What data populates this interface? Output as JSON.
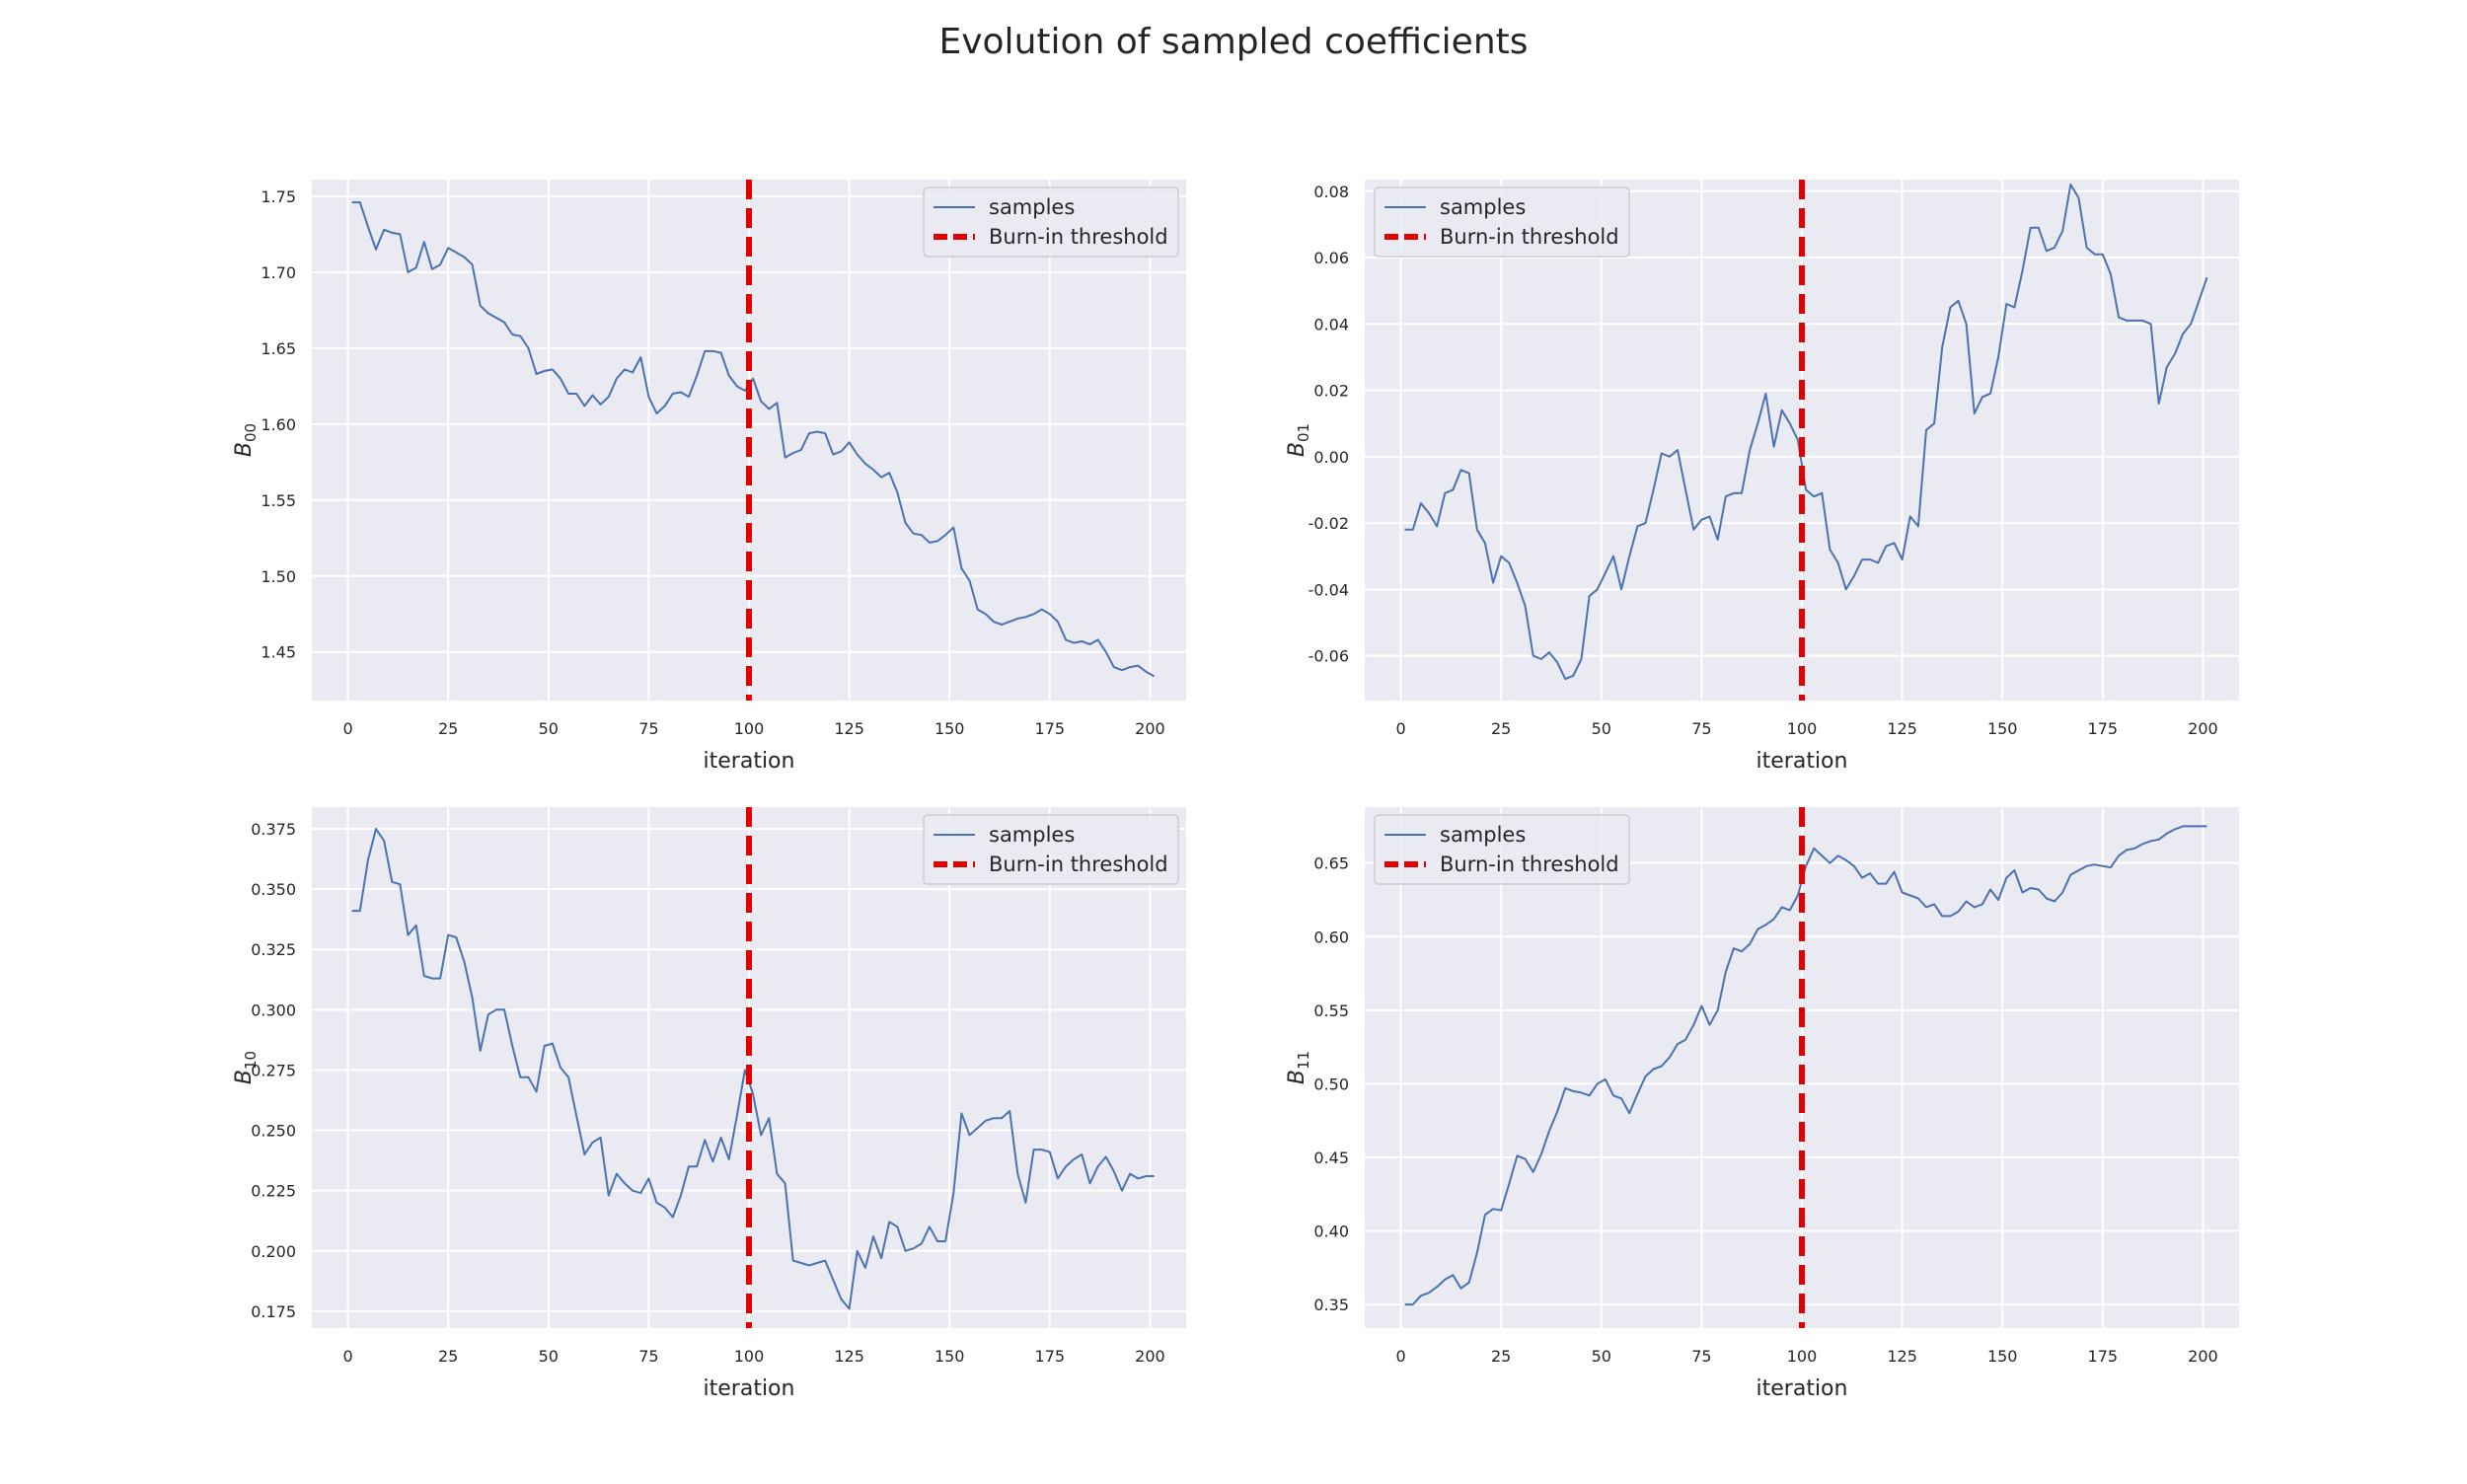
{
  "figure": {
    "suptitle": "Evolution of sampled coefficients",
    "background": "#ffffff",
    "axes_facecolor": "#eaeaf2",
    "grid_color": "#ffffff",
    "series_color": "#4c72b0",
    "threshold_color": "#e50000"
  },
  "chart_data": [
    {
      "type": "line",
      "ylabel_base": "B",
      "ylabel_sub": "00",
      "xlabel": "iteration",
      "xlim": [
        -9,
        209
      ],
      "ylim": [
        1.418,
        1.761
      ],
      "xticks": [
        0,
        25,
        50,
        75,
        100,
        125,
        150,
        175,
        200
      ],
      "yticks": [
        1.45,
        1.5,
        1.55,
        1.6,
        1.65,
        1.7,
        1.75
      ],
      "ytick_decimals": 2,
      "legend_loc": "upper right",
      "legend": [
        "samples",
        "Burn-in threshold"
      ],
      "threshold": 100,
      "grid": true,
      "series": [
        {
          "name": "samples",
          "x": [
            1,
            3,
            5,
            7,
            9,
            11,
            13,
            15,
            17,
            19,
            21,
            23,
            25,
            27,
            29,
            31,
            33,
            35,
            37,
            39,
            41,
            43,
            45,
            47,
            49,
            51,
            53,
            55,
            57,
            59,
            61,
            63,
            65,
            67,
            69,
            71,
            73,
            75,
            77,
            79,
            81,
            83,
            85,
            87,
            89,
            91,
            93,
            95,
            97,
            99,
            101,
            103,
            105,
            107,
            109,
            111,
            113,
            115,
            117,
            119,
            121,
            123,
            125,
            127,
            129,
            131,
            133,
            135,
            137,
            139,
            141,
            143,
            145,
            147,
            149,
            151,
            153,
            155,
            157,
            159,
            161,
            163,
            165,
            167,
            169,
            171,
            173,
            175,
            177,
            179,
            181,
            183,
            185,
            187,
            189,
            191,
            193,
            195,
            197,
            199,
            201
          ],
          "y": [
            1.746,
            1.746,
            1.73,
            1.715,
            1.728,
            1.726,
            1.725,
            1.7,
            1.703,
            1.72,
            1.702,
            1.705,
            1.716,
            1.713,
            1.71,
            1.705,
            1.678,
            1.673,
            1.67,
            1.667,
            1.659,
            1.658,
            1.65,
            1.633,
            1.635,
            1.636,
            1.63,
            1.62,
            1.62,
            1.612,
            1.619,
            1.613,
            1.618,
            1.63,
            1.636,
            1.634,
            1.644,
            1.618,
            1.607,
            1.612,
            1.62,
            1.621,
            1.618,
            1.632,
            1.648,
            1.648,
            1.647,
            1.632,
            1.625,
            1.622,
            1.63,
            1.615,
            1.61,
            1.614,
            1.578,
            1.581,
            1.583,
            1.594,
            1.595,
            1.594,
            1.58,
            1.582,
            1.588,
            1.58,
            1.574,
            1.57,
            1.565,
            1.568,
            1.555,
            1.535,
            1.528,
            1.527,
            1.522,
            1.523,
            1.527,
            1.532,
            1.505,
            1.497,
            1.478,
            1.475,
            1.47,
            1.468,
            1.47,
            1.472,
            1.473,
            1.475,
            1.478,
            1.475,
            1.47,
            1.458,
            1.456,
            1.457,
            1.455,
            1.458,
            1.45,
            1.44,
            1.438,
            1.44,
            1.441,
            1.437,
            1.434
          ]
        }
      ]
    },
    {
      "type": "line",
      "ylabel_base": "B",
      "ylabel_sub": "01",
      "xlabel": "iteration",
      "xlim": [
        -9,
        209
      ],
      "ylim": [
        -0.0735,
        0.0835
      ],
      "xticks": [
        0,
        25,
        50,
        75,
        100,
        125,
        150,
        175,
        200
      ],
      "yticks": [
        -0.06,
        -0.04,
        -0.02,
        0.0,
        0.02,
        0.04,
        0.06,
        0.08
      ],
      "ytick_decimals": 2,
      "legend_loc": "upper left",
      "legend": [
        "samples",
        "Burn-in threshold"
      ],
      "threshold": 100,
      "grid": true,
      "series": [
        {
          "name": "samples",
          "x": [
            1,
            3,
            5,
            7,
            9,
            11,
            13,
            15,
            17,
            19,
            21,
            23,
            25,
            27,
            29,
            31,
            33,
            35,
            37,
            39,
            41,
            43,
            45,
            47,
            49,
            51,
            53,
            55,
            57,
            59,
            61,
            63,
            65,
            67,
            69,
            71,
            73,
            75,
            77,
            79,
            81,
            83,
            85,
            87,
            89,
            91,
            93,
            95,
            97,
            99,
            101,
            103,
            105,
            107,
            109,
            111,
            113,
            115,
            117,
            119,
            121,
            123,
            125,
            127,
            129,
            131,
            133,
            135,
            137,
            139,
            141,
            143,
            145,
            147,
            149,
            151,
            153,
            155,
            157,
            159,
            161,
            163,
            165,
            167,
            169,
            171,
            173,
            175,
            177,
            179,
            181,
            183,
            185,
            187,
            189,
            191,
            193,
            195,
            197,
            199,
            201
          ],
          "y": [
            -0.022,
            -0.022,
            -0.014,
            -0.017,
            -0.021,
            -0.011,
            -0.01,
            -0.004,
            -0.005,
            -0.022,
            -0.026,
            -0.038,
            -0.03,
            -0.032,
            -0.038,
            -0.045,
            -0.06,
            -0.061,
            -0.059,
            -0.062,
            -0.067,
            -0.066,
            -0.061,
            -0.042,
            -0.04,
            -0.035,
            -0.03,
            -0.04,
            -0.03,
            -0.021,
            -0.02,
            -0.01,
            0.001,
            0.0,
            0.002,
            -0.01,
            -0.022,
            -0.019,
            -0.018,
            -0.025,
            -0.012,
            -0.011,
            -0.011,
            0.002,
            0.01,
            0.019,
            0.003,
            0.014,
            0.01,
            0.005,
            -0.01,
            -0.012,
            -0.011,
            -0.028,
            -0.032,
            -0.04,
            -0.036,
            -0.031,
            -0.031,
            -0.032,
            -0.027,
            -0.026,
            -0.031,
            -0.018,
            -0.021,
            0.008,
            0.01,
            0.033,
            0.045,
            0.047,
            0.04,
            0.013,
            0.018,
            0.019,
            0.03,
            0.046,
            0.045,
            0.056,
            0.069,
            0.069,
            0.062,
            0.063,
            0.068,
            0.082,
            0.078,
            0.063,
            0.061,
            0.061,
            0.055,
            0.042,
            0.041,
            0.041,
            0.041,
            0.04,
            0.016,
            0.027,
            0.031,
            0.037,
            0.04,
            0.047,
            0.054
          ]
        }
      ]
    },
    {
      "type": "line",
      "ylabel_base": "B",
      "ylabel_sub": "10",
      "xlabel": "iteration",
      "xlim": [
        -9,
        209
      ],
      "ylim": [
        0.168,
        0.384
      ],
      "xticks": [
        0,
        25,
        50,
        75,
        100,
        125,
        150,
        175,
        200
      ],
      "yticks": [
        0.175,
        0.2,
        0.225,
        0.25,
        0.275,
        0.3,
        0.325,
        0.35,
        0.375
      ],
      "ytick_decimals": 3,
      "legend_loc": "upper right",
      "legend": [
        "samples",
        "Burn-in threshold"
      ],
      "threshold": 100,
      "grid": true,
      "series": [
        {
          "name": "samples",
          "x": [
            1,
            3,
            5,
            7,
            9,
            11,
            13,
            15,
            17,
            19,
            21,
            23,
            25,
            27,
            29,
            31,
            33,
            35,
            37,
            39,
            41,
            43,
            45,
            47,
            49,
            51,
            53,
            55,
            57,
            59,
            61,
            63,
            65,
            67,
            69,
            71,
            73,
            75,
            77,
            79,
            81,
            83,
            85,
            87,
            89,
            91,
            93,
            95,
            97,
            99,
            101,
            103,
            105,
            107,
            109,
            111,
            113,
            115,
            117,
            119,
            121,
            123,
            125,
            127,
            129,
            131,
            133,
            135,
            137,
            139,
            141,
            143,
            145,
            147,
            149,
            151,
            153,
            155,
            157,
            159,
            161,
            163,
            165,
            167,
            169,
            171,
            173,
            175,
            177,
            179,
            181,
            183,
            185,
            187,
            189,
            191,
            193,
            195,
            197,
            199,
            201
          ],
          "y": [
            0.341,
            0.341,
            0.362,
            0.375,
            0.37,
            0.353,
            0.352,
            0.331,
            0.335,
            0.314,
            0.313,
            0.313,
            0.331,
            0.33,
            0.32,
            0.305,
            0.283,
            0.298,
            0.3,
            0.3,
            0.285,
            0.272,
            0.272,
            0.266,
            0.285,
            0.286,
            0.276,
            0.272,
            0.256,
            0.24,
            0.245,
            0.247,
            0.223,
            0.232,
            0.228,
            0.225,
            0.224,
            0.23,
            0.22,
            0.218,
            0.214,
            0.223,
            0.235,
            0.235,
            0.246,
            0.237,
            0.247,
            0.238,
            0.256,
            0.275,
            0.265,
            0.248,
            0.255,
            0.232,
            0.228,
            0.196,
            0.195,
            0.194,
            0.195,
            0.196,
            0.188,
            0.18,
            0.176,
            0.2,
            0.193,
            0.206,
            0.197,
            0.212,
            0.21,
            0.2,
            0.201,
            0.203,
            0.21,
            0.204,
            0.204,
            0.224,
            0.257,
            0.248,
            0.251,
            0.254,
            0.255,
            0.255,
            0.258,
            0.232,
            0.22,
            0.242,
            0.242,
            0.241,
            0.23,
            0.235,
            0.238,
            0.24,
            0.228,
            0.235,
            0.239,
            0.233,
            0.225,
            0.232,
            0.23,
            0.231,
            0.231
          ]
        }
      ]
    },
    {
      "type": "line",
      "ylabel_base": "B",
      "ylabel_sub": "11",
      "xlabel": "iteration",
      "xlim": [
        -9,
        209
      ],
      "ylim": [
        0.334,
        0.688
      ],
      "xticks": [
        0,
        25,
        50,
        75,
        100,
        125,
        150,
        175,
        200
      ],
      "yticks": [
        0.35,
        0.4,
        0.45,
        0.5,
        0.55,
        0.6,
        0.65
      ],
      "ytick_decimals": 2,
      "legend_loc": "upper left",
      "legend": [
        "samples",
        "Burn-in threshold"
      ],
      "threshold": 100,
      "grid": true,
      "series": [
        {
          "name": "samples",
          "x": [
            1,
            3,
            5,
            7,
            9,
            11,
            13,
            15,
            17,
            19,
            21,
            23,
            25,
            27,
            29,
            31,
            33,
            35,
            37,
            39,
            41,
            43,
            45,
            47,
            49,
            51,
            53,
            55,
            57,
            59,
            61,
            63,
            65,
            67,
            69,
            71,
            73,
            75,
            77,
            79,
            81,
            83,
            85,
            87,
            89,
            91,
            93,
            95,
            97,
            99,
            101,
            103,
            105,
            107,
            109,
            111,
            113,
            115,
            117,
            119,
            121,
            123,
            125,
            127,
            129,
            131,
            133,
            135,
            137,
            139,
            141,
            143,
            145,
            147,
            149,
            151,
            153,
            155,
            157,
            159,
            161,
            163,
            165,
            167,
            169,
            171,
            173,
            175,
            177,
            179,
            181,
            183,
            185,
            187,
            189,
            191,
            193,
            195,
            197,
            199,
            201
          ],
          "y": [
            0.35,
            0.35,
            0.356,
            0.358,
            0.362,
            0.367,
            0.37,
            0.361,
            0.365,
            0.385,
            0.411,
            0.415,
            0.414,
            0.432,
            0.451,
            0.449,
            0.44,
            0.452,
            0.468,
            0.481,
            0.497,
            0.495,
            0.494,
            0.492,
            0.5,
            0.503,
            0.492,
            0.49,
            0.48,
            0.493,
            0.505,
            0.51,
            0.512,
            0.518,
            0.527,
            0.53,
            0.54,
            0.553,
            0.54,
            0.55,
            0.576,
            0.592,
            0.59,
            0.595,
            0.605,
            0.608,
            0.612,
            0.62,
            0.618,
            0.628,
            0.648,
            0.66,
            0.655,
            0.65,
            0.655,
            0.652,
            0.648,
            0.64,
            0.643,
            0.636,
            0.636,
            0.644,
            0.63,
            0.628,
            0.626,
            0.62,
            0.622,
            0.614,
            0.614,
            0.617,
            0.624,
            0.62,
            0.622,
            0.632,
            0.625,
            0.64,
            0.645,
            0.63,
            0.633,
            0.632,
            0.626,
            0.624,
            0.63,
            0.642,
            0.645,
            0.648,
            0.649,
            0.648,
            0.647,
            0.655,
            0.659,
            0.66,
            0.663,
            0.665,
            0.666,
            0.67,
            0.673,
            0.675,
            0.675,
            0.675,
            0.675
          ]
        }
      ]
    }
  ]
}
